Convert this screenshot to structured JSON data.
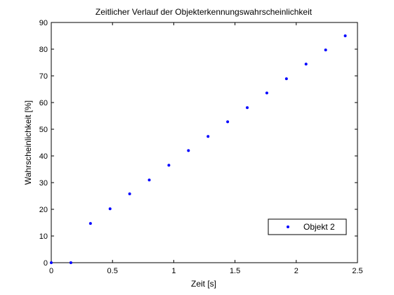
{
  "chart_data": {
    "type": "scatter",
    "title": "Zeitlicher Verlauf der Objekterkennungswahrscheinlichkeit",
    "xlabel": "Zeit [s]",
    "ylabel": "Wahrscheinlichkeit [%]",
    "xlim": [
      0,
      2.5
    ],
    "ylim": [
      0,
      90
    ],
    "xticks": [
      0,
      0.5,
      1,
      1.5,
      2,
      2.5
    ],
    "xtick_labels": [
      "0",
      "0.5",
      "1",
      "1.5",
      "2",
      "2.5"
    ],
    "yticks": [
      0,
      10,
      20,
      30,
      40,
      50,
      60,
      70,
      80,
      90
    ],
    "ytick_labels": [
      "0",
      "10",
      "20",
      "30",
      "40",
      "50",
      "60",
      "70",
      "80",
      "90"
    ],
    "grid": false,
    "legend_position": "bottom-right",
    "series": [
      {
        "name": "Objekt 2",
        "color": "#0000ff",
        "marker": "dot",
        "x": [
          0,
          0.16,
          0.32,
          0.48,
          0.64,
          0.8,
          0.96,
          1.12,
          1.28,
          1.44,
          1.6,
          1.76,
          1.92,
          2.08,
          2.24,
          2.4
        ],
        "y": [
          0,
          0,
          14.7,
          20.2,
          25.8,
          31.0,
          36.5,
          42.0,
          47.3,
          52.8,
          58.1,
          63.6,
          68.9,
          74.4,
          79.7,
          85.0
        ]
      }
    ]
  }
}
